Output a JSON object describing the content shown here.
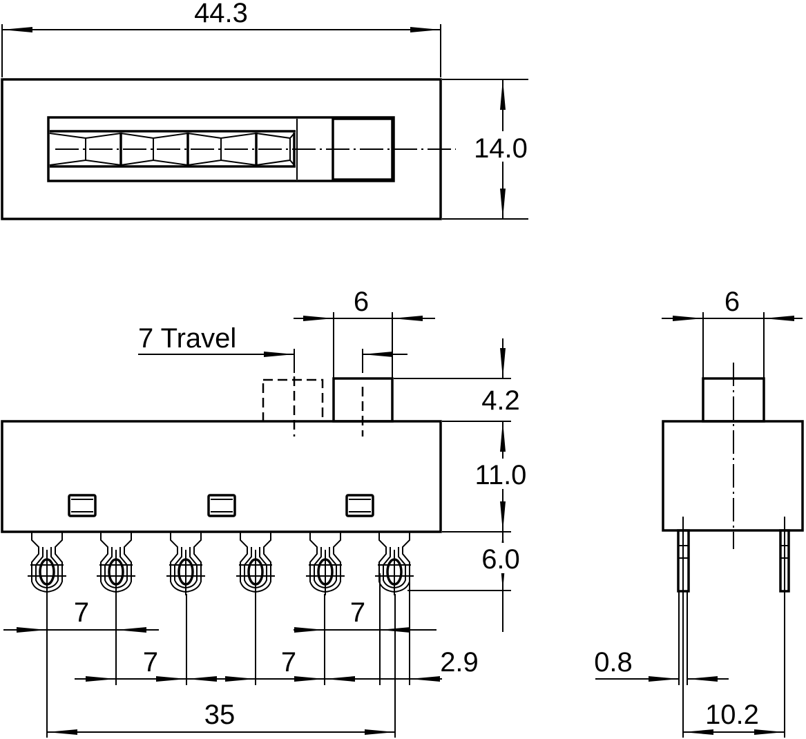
{
  "drawing": {
    "top_view": {
      "width_dim": "44.3",
      "height_dim": "14.0"
    },
    "front_view": {
      "knob_width_dim": "6",
      "travel_dim": "7 Travel",
      "knob_height_dim": "4.2",
      "body_height_dim": "11.0",
      "terminal_length_dim": "6.0",
      "pitch_left_dim": "7",
      "pitch_right_dim": "7",
      "pitch_mid_left_dim": "7",
      "pitch_mid_right_dim": "7",
      "terminal_width_dim": "2.9",
      "total_pitch_dim": "35"
    },
    "side_view": {
      "knob_width_dim": "6",
      "pin_thickness_dim": "0.8",
      "pin_spacing_dim": "10.2"
    }
  }
}
